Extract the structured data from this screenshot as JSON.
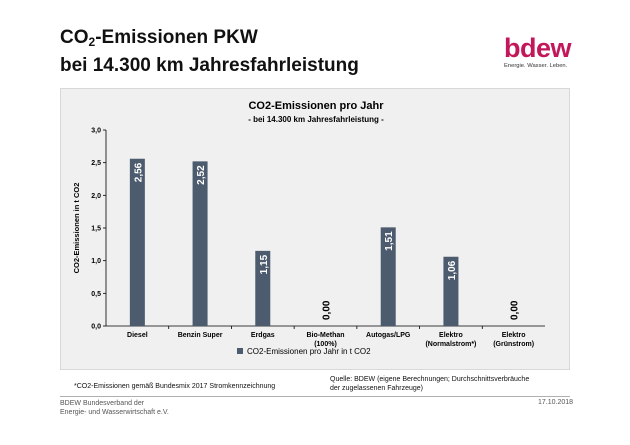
{
  "slide": {
    "title_prefix": "CO",
    "title_subscript": "2",
    "title_suffix": "-Emissionen PKW",
    "title_line2": "bei 14.300 km Jahresfahrleistung"
  },
  "logo": {
    "wordmark": "bdew",
    "tagline": "Energie. Wasser. Leben."
  },
  "footnote": "*CO2-Emissionen gemäß Bundesmix 2017 Stromkennzeichnung",
  "source": {
    "line1": "Quelle: BDEW (eigene Berechnungen; Durchschnittsverbräuche",
    "line2": " der zugelassenen Fahrzeuge)"
  },
  "footer": {
    "org_line1": "BDEW Bundesverband der",
    "org_line2": "Energie- und Wasserwirtschaft e.V.",
    "date": "17.10.2018"
  },
  "colors": {
    "bar": "#4d5b6e",
    "plot_background": "#f0f0f0",
    "accent": "#c2185b"
  },
  "chart_data": {
    "type": "bar",
    "title": "CO2-Emissionen pro Jahr",
    "subtitle": "- bei 14.300 km Jahresfahrleistung -",
    "xlabel": "",
    "ylabel": "CO2-Emissionen in t CO2",
    "ylim": [
      0,
      3
    ],
    "yticks": [
      "0,0",
      "0,5",
      "1,0",
      "1,5",
      "2,0",
      "2,5",
      "3,0"
    ],
    "grid": false,
    "legend_position": "bottom",
    "categories": [
      [
        "Diesel"
      ],
      [
        "Benzin Super"
      ],
      [
        "Erdgas"
      ],
      [
        "Bio-Methan",
        "(100%)"
      ],
      [
        "Autogas/LPG"
      ],
      [
        "Elektro",
        "(Normalstrom*)"
      ],
      [
        "Elektro",
        "(Grünstrom)"
      ]
    ],
    "series": [
      {
        "name": "CO2-Emissionen pro Jahr in t CO2",
        "values": [
          2.56,
          2.52,
          1.15,
          0.0,
          1.51,
          1.06,
          0.0
        ],
        "labels": [
          "2,56",
          "2,52",
          "1,15",
          "0,00",
          "1,51",
          "1,06",
          "0,00"
        ]
      }
    ]
  }
}
